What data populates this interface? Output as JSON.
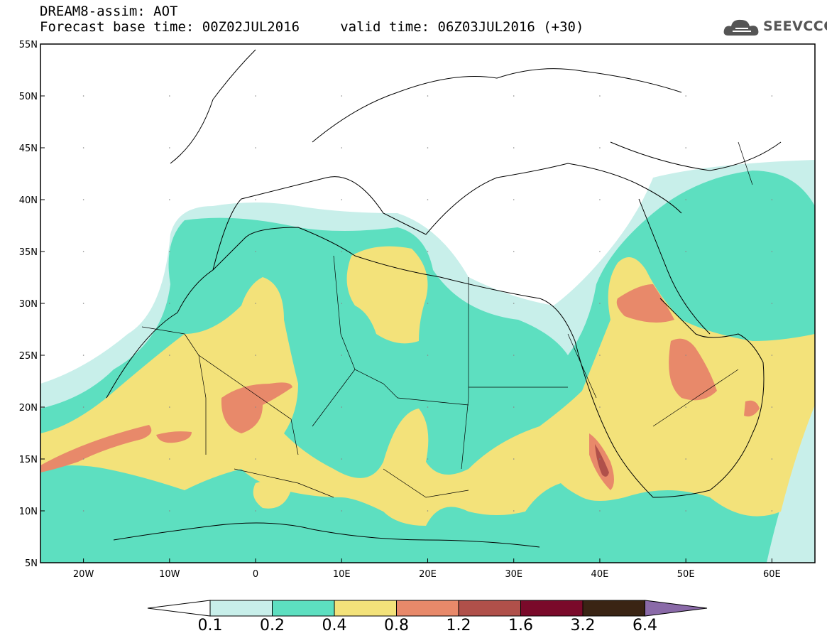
{
  "title": {
    "line1": "DREAM8-assim: AOT",
    "line2": "Forecast base time: 00Z02JUL2016     valid time: 06Z03JUL2016 (+30)"
  },
  "logo": {
    "text": "SEEVCCC",
    "icon": "cloud-icon"
  },
  "axes": {
    "lat_labels": [
      "55N",
      "50N",
      "45N",
      "40N",
      "35N",
      "30N",
      "25N",
      "20N",
      "15N",
      "10N",
      "5N"
    ],
    "lon_labels": [
      "20W",
      "10W",
      "0",
      "10E",
      "20E",
      "30E",
      "40E",
      "50E",
      "60E"
    ],
    "lat_range": [
      5,
      55
    ],
    "lon_range": [
      -25,
      65
    ]
  },
  "colorbar": {
    "labels": [
      "0.1",
      "0.2",
      "0.4",
      "0.8",
      "1.2",
      "1.6",
      "3.2",
      "6.4"
    ],
    "colors": [
      "#ffffff",
      "#c8efea",
      "#5ddfc0",
      "#f3e27a",
      "#e8896a",
      "#b0504a",
      "#7a0a2a",
      "#3a2414",
      "#8a6aa8"
    ]
  },
  "colors": {
    "level1": "#c8efea",
    "level2": "#5ddfc0",
    "level3": "#f3e27a",
    "level4": "#e8896a",
    "level5": "#b0504a"
  }
}
